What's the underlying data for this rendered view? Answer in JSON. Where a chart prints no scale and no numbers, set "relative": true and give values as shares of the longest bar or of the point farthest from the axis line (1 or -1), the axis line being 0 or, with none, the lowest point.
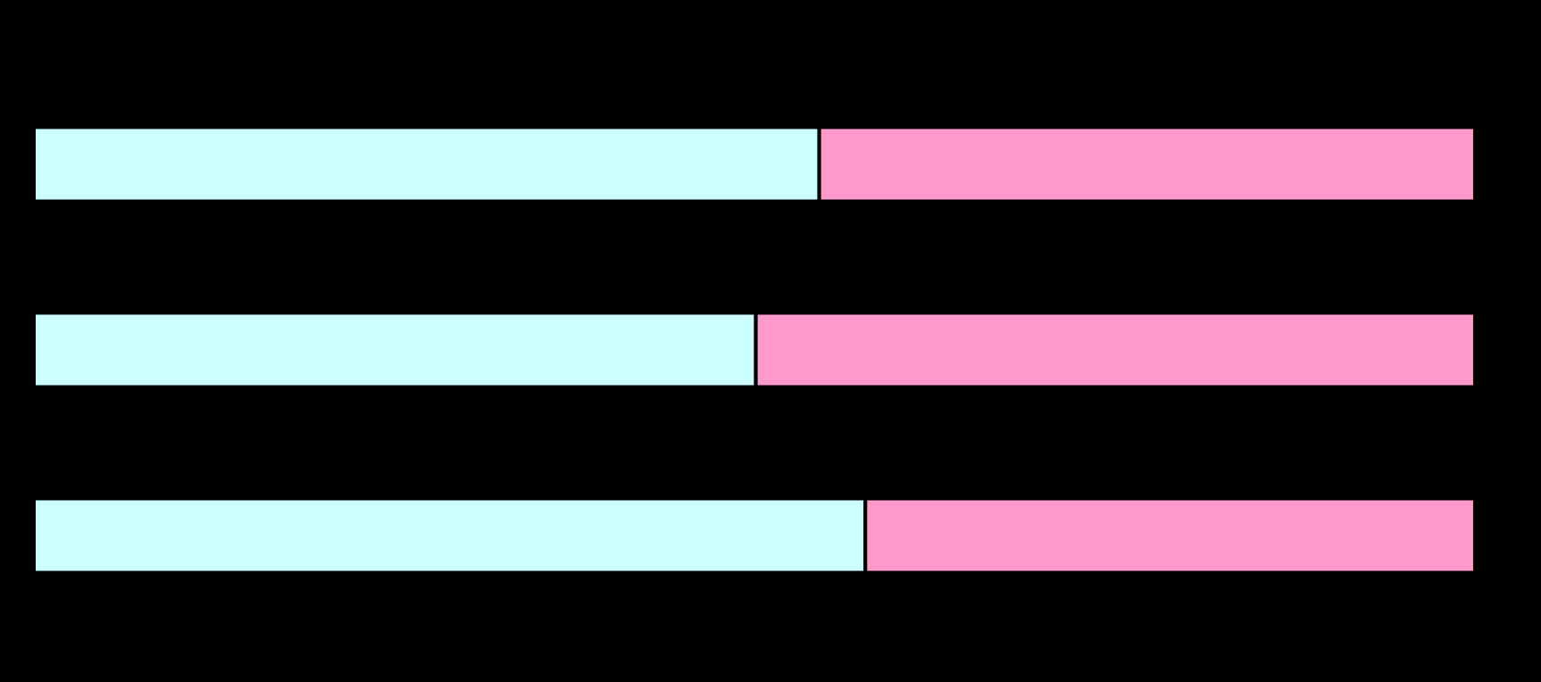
{
  "chart_data": {
    "type": "bar",
    "orientation": "horizontal",
    "stacked": true,
    "relative": true,
    "categories": [
      null,
      null,
      null
    ],
    "series": [
      {
        "color": "#ccffff",
        "values": [
          0.545,
          0.501,
          0.577
        ]
      },
      {
        "color": "#ff99cc",
        "values": [
          0.455,
          0.499,
          0.423
        ]
      }
    ],
    "legend": false
  }
}
